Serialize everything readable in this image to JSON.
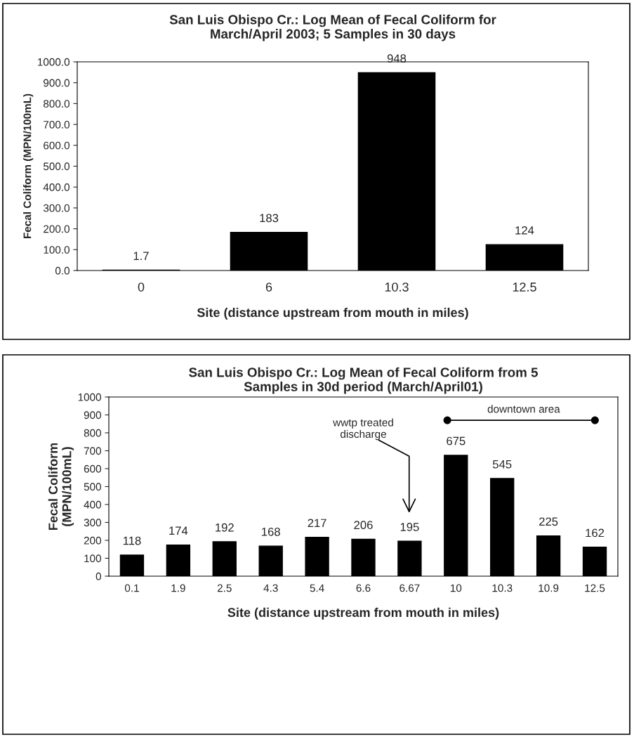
{
  "chart_data": [
    {
      "type": "bar",
      "title": "San Luis Obispo Cr.: Log Mean of Fecal Coliform for\nMarch/April 2003; 5 Samples in 30 days",
      "xlabel": "Site (distance upstream from mouth in miles)",
      "ylabel": "Fecal Coliform (MPN/100mL)",
      "categories": [
        "0",
        "6",
        "10.3",
        "12.5"
      ],
      "values": [
        1.7,
        183,
        948,
        124
      ],
      "color": "#000000",
      "ylim": [
        0,
        1000
      ],
      "yticks": [
        {
          "value": 0,
          "label": "0.0"
        },
        {
          "value": 100,
          "label": "100.0"
        },
        {
          "value": 200,
          "label": "200.0"
        },
        {
          "value": 300,
          "label": "300.0"
        },
        {
          "value": 400,
          "label": "400.0"
        },
        {
          "value": 500,
          "label": "500.0"
        },
        {
          "value": 600,
          "label": "600.0"
        },
        {
          "value": 700,
          "label": "700.0"
        },
        {
          "value": 800,
          "label": "800.0"
        },
        {
          "value": 900,
          "label": "900.0"
        },
        {
          "value": 1000,
          "label": "1000.0"
        }
      ],
      "data_labels": true,
      "grid": false,
      "legend": false
    },
    {
      "type": "bar",
      "title": "San Luis Obispo Cr.: Log Mean of Fecal Coliform from 5\nSamples in 30d period (March/April01)",
      "xlabel": "Site (distance upstream from mouth in miles)",
      "ylabel": "Fecal Coliform\n(MPN/100mL)",
      "categories": [
        "0.1",
        "1.9",
        "2.5",
        "4.3",
        "5.4",
        "6.6",
        "6.67",
        "10",
        "10.3",
        "10.9",
        "12.5"
      ],
      "values": [
        118,
        174,
        192,
        168,
        217,
        206,
        195,
        675,
        545,
        225,
        162
      ],
      "color": "#000000",
      "ylim": [
        0,
        1000
      ],
      "yticks": [
        0,
        100,
        200,
        300,
        400,
        500,
        600,
        700,
        800,
        900,
        1000
      ],
      "data_labels": true,
      "grid": false,
      "legend": false,
      "annotations": [
        "downtown area",
        "wwtp treated\ndischarge"
      ]
    }
  ]
}
